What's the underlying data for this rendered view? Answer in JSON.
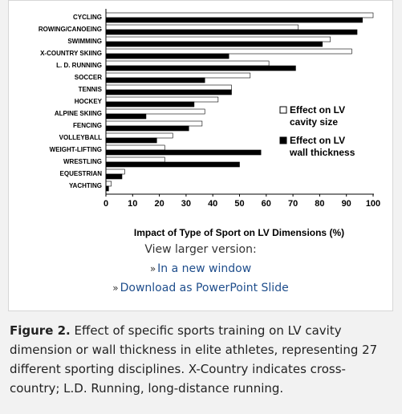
{
  "figure": {
    "view_larger": "View larger version:",
    "link_new_window": "In a new window",
    "link_ppt": "Download as PowerPoint Slide",
    "caption_label": "Figure 2.",
    "caption_text": "Effect of specific sports training on LV cavity dimension or wall thickness in elite athletes, representing 27 different sporting disciplines. X-Country indicates cross-country; L.D. Running, long-distance running."
  },
  "chart_data": {
    "type": "bar",
    "orientation": "horizontal",
    "xlabel": "Impact of Type of Sport on LV Dimensions (%)",
    "xlim": [
      0,
      100
    ],
    "xticks": [
      0,
      10,
      20,
      30,
      40,
      50,
      60,
      70,
      80,
      90,
      100
    ],
    "grid": false,
    "legend_position": "right",
    "categories": [
      "CYCLING",
      "ROWING/CANOEING",
      "SWIMMING",
      "X-COUNTRY SKIING",
      "L. D. RUNNING",
      "SOCCER",
      "TENNIS",
      "HOCKEY",
      "ALPINE SKIING",
      "FENCING",
      "VOLLEYBALL",
      "WEIGHT-LIFTING",
      "WRESTLING",
      "EQUESTRIAN",
      "YACHTING"
    ],
    "series": [
      {
        "name": "Effect on LV cavity size",
        "legend_lines": [
          "Effect on LV",
          "cavity size"
        ],
        "color": "#ffffff",
        "values": [
          100,
          72,
          84,
          92,
          61,
          54,
          47,
          42,
          37,
          36,
          25,
          22,
          22,
          7,
          2
        ]
      },
      {
        "name": "Effect on LV wall thickness",
        "legend_lines": [
          "Effect on LV",
          "wall thickness"
        ],
        "color": "#000000",
        "values": [
          96,
          94,
          81,
          46,
          71,
          37,
          47,
          33,
          15,
          31,
          19,
          58,
          50,
          6,
          1
        ]
      }
    ]
  }
}
